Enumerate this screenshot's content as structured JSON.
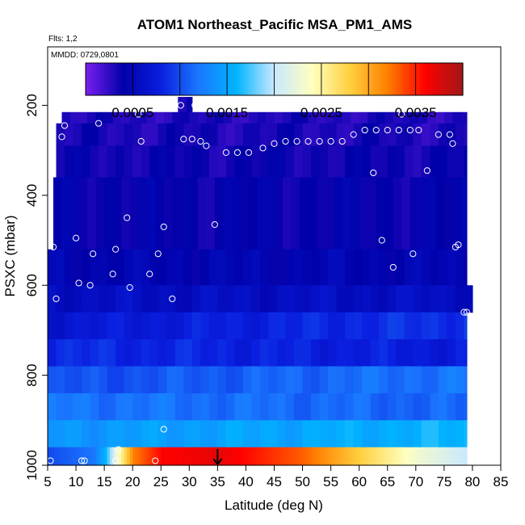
{
  "chart_data": {
    "type": "heatmap",
    "title": "ATOM1 Northeast_Pacific MSA_PM1_AMS",
    "flights_note": "Flts: 1,2",
    "date_note": "MMDD: 0729,0801",
    "xlabel": "Latitude (deg N)",
    "ylabel": "PSXC (mbar)",
    "xlim": [
      5,
      85
    ],
    "ylim": [
      1000,
      70
    ],
    "y_reversed": true,
    "x_ticks": [
      5,
      10,
      15,
      20,
      25,
      30,
      35,
      40,
      45,
      50,
      55,
      60,
      65,
      70,
      75,
      80,
      85
    ],
    "y_ticks": [
      200,
      400,
      600,
      800,
      1000
    ],
    "colorbar": {
      "range": [
        0,
        0.004
      ],
      "ticks": [
        0.0005,
        0.0015,
        0.0025,
        0.0035
      ],
      "tick_labels": [
        "0.0005",
        "0.0015",
        "0.0025",
        "0.0035"
      ],
      "colors": [
        "#7a1ff0",
        "#0000a8",
        "#0a1fe0",
        "#1a78ff",
        "#00b4ff",
        "#c8e8ff",
        "#ffffc0",
        "#ffd040",
        "#ff8000",
        "#ff0000",
        "#a01818"
      ]
    },
    "layers": [
      {
        "p_top": 170,
        "p_bottom": 215,
        "x_from": 28,
        "x_to": 30.5,
        "value": 0.00032
      },
      {
        "p_top": 215,
        "p_bottom": 240,
        "x_from": 7.5,
        "x_to": 79,
        "value": 0.0003
      },
      {
        "p_top": 240,
        "p_bottom": 290,
        "x_from": 6.5,
        "x_to": 79,
        "value": 0.00032
      },
      {
        "p_top": 290,
        "p_bottom": 360,
        "x_from": 6.5,
        "x_to": 79,
        "value": 0.00036
      },
      {
        "p_top": 360,
        "p_bottom": 520,
        "x_from": 6,
        "x_to": 79,
        "value": 0.0004
      },
      {
        "p_top": 520,
        "p_bottom": 600,
        "x_from": 5,
        "x_to": 79,
        "value": 0.00046
      },
      {
        "p_top": 600,
        "p_bottom": 660,
        "x_from": 5,
        "x_to": 80,
        "value": 0.00058
      },
      {
        "p_top": 660,
        "p_bottom": 720,
        "x_from": 5,
        "x_to": 79,
        "value": 0.0007
      },
      {
        "p_top": 720,
        "p_bottom": 780,
        "x_from": 5,
        "x_to": 79,
        "value": 0.00085
      },
      {
        "p_top": 780,
        "p_bottom": 840,
        "x_from": 5,
        "x_to": 79,
        "value": 0.001
      },
      {
        "p_top": 840,
        "p_bottom": 900,
        "x_from": 5,
        "x_to": 79,
        "value": 0.0012
      },
      {
        "p_top": 900,
        "p_bottom": 960,
        "x_from": 5,
        "x_to": 79,
        "value": 0.0014
      },
      {
        "p_top": 960,
        "p_bottom": 1000,
        "x_from": 5,
        "x_to": 79,
        "value": 0.003
      }
    ],
    "surface_gradient": [
      {
        "x": 5,
        "value": 0.001
      },
      {
        "x": 13,
        "value": 0.0012
      },
      {
        "x": 15,
        "value": 0.0016
      },
      {
        "x": 17,
        "value": 0.0023
      },
      {
        "x": 20,
        "value": 0.0032
      },
      {
        "x": 25,
        "value": 0.0036
      },
      {
        "x": 35,
        "value": 0.0037
      },
      {
        "x": 50,
        "value": 0.0033
      },
      {
        "x": 60,
        "value": 0.0028
      },
      {
        "x": 70,
        "value": 0.0023
      },
      {
        "x": 79,
        "value": 0.002
      }
    ],
    "points": [
      [
        28.5,
        200
      ],
      [
        31,
        200
      ],
      [
        21,
        220
      ],
      [
        14,
        240
      ],
      [
        8,
        245
      ],
      [
        7.5,
        270
      ],
      [
        21.5,
        280
      ],
      [
        29,
        275
      ],
      [
        30.5,
        275
      ],
      [
        32,
        280
      ],
      [
        33,
        290
      ],
      [
        67.5,
        220
      ],
      [
        61,
        255
      ],
      [
        63,
        255
      ],
      [
        65,
        255
      ],
      [
        67,
        255
      ],
      [
        69,
        255
      ],
      [
        70.5,
        255
      ],
      [
        74,
        265
      ],
      [
        76,
        265
      ],
      [
        76.5,
        285
      ],
      [
        72,
        345
      ],
      [
        62.5,
        350
      ],
      [
        36.5,
        305
      ],
      [
        38.5,
        305
      ],
      [
        40.5,
        305
      ],
      [
        43,
        295
      ],
      [
        45,
        285
      ],
      [
        47,
        280
      ],
      [
        49,
        280
      ],
      [
        51,
        280
      ],
      [
        53,
        280
      ],
      [
        55,
        280
      ],
      [
        57,
        280
      ],
      [
        59,
        265
      ],
      [
        6,
        515
      ],
      [
        10,
        495
      ],
      [
        13,
        530
      ],
      [
        19,
        450
      ],
      [
        25.5,
        470
      ],
      [
        34.5,
        465
      ],
      [
        17,
        520
      ],
      [
        24.5,
        530
      ],
      [
        64,
        500
      ],
      [
        69.5,
        530
      ],
      [
        77,
        515
      ],
      [
        77.5,
        510
      ],
      [
        6.5,
        630
      ],
      [
        10.5,
        595
      ],
      [
        12.5,
        600
      ],
      [
        16.5,
        575
      ],
      [
        19.5,
        605
      ],
      [
        23,
        575
      ],
      [
        27,
        630
      ],
      [
        66,
        560
      ],
      [
        78.5,
        660
      ],
      [
        79,
        660
      ],
      [
        25.5,
        920
      ],
      [
        17.5,
        965
      ],
      [
        5.5,
        990
      ],
      [
        11,
        990
      ],
      [
        11.5,
        990
      ],
      [
        17,
        990
      ],
      [
        24,
        990
      ]
    ],
    "marker_arrow_x": 35
  }
}
